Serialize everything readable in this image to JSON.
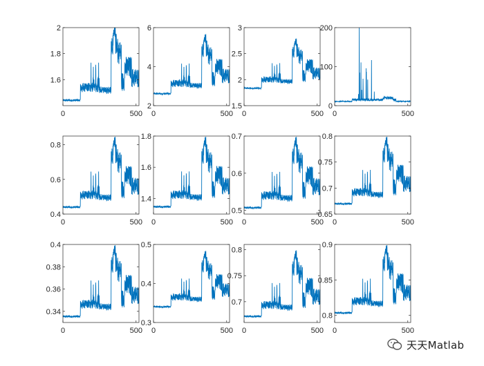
{
  "figure": {
    "line_color": "#0072BD",
    "axis_color": "#262626"
  },
  "watermark": {
    "icon": "wechat-icon",
    "text": "天天Matlab"
  },
  "chart_data": [
    {
      "type": "line",
      "ylim": [
        1.4,
        2
      ],
      "yticks": [
        "1.6",
        "1.8",
        "2"
      ],
      "xlim": [
        0,
        520
      ],
      "xticks": [
        "0",
        "500"
      ],
      "base": 1.42,
      "scale": 0.6
    },
    {
      "type": "line",
      "ylim": [
        2,
        6
      ],
      "yticks": [
        "2",
        "4",
        "6"
      ],
      "xlim": [
        0,
        520
      ],
      "xticks": [
        "0",
        "500"
      ],
      "base": 2.5,
      "scale": 3.2
    },
    {
      "type": "line",
      "ylim": [
        1.5,
        3
      ],
      "yticks": [
        "1.5",
        "2",
        "2.5",
        "3"
      ],
      "xlim": [
        0,
        520
      ],
      "xticks": [
        "0",
        "500"
      ],
      "base": 1.8,
      "scale": 1.0
    },
    {
      "type": "line",
      "ylim": [
        0,
        200
      ],
      "yticks": [
        "0",
        "100",
        "200"
      ],
      "xlim": [
        0,
        520
      ],
      "xticks": [
        "0",
        "500"
      ],
      "base": 8,
      "scale": 200,
      "spiky": true
    },
    {
      "type": "line",
      "ylim": [
        0.4,
        0.85
      ],
      "yticks": [
        "0.4",
        "0.6",
        "0.8"
      ],
      "xlim": [
        0,
        520
      ],
      "xticks": [
        "0",
        "500"
      ],
      "base": 0.425,
      "scale": 0.425
    },
    {
      "type": "line",
      "ylim": [
        1.3,
        1.8
      ],
      "yticks": [
        "1.4",
        "1.6",
        "1.8"
      ],
      "xlim": [
        0,
        520
      ],
      "xticks": [
        "0",
        "500"
      ],
      "base": 1.33,
      "scale": 0.47
    },
    {
      "type": "line",
      "ylim": [
        0.49,
        0.7
      ],
      "yticks": [
        "0.5",
        "0.6",
        "0.7"
      ],
      "xlim": [
        0,
        520
      ],
      "xticks": [
        "0",
        "500"
      ],
      "base": 0.5,
      "scale": 0.2
    },
    {
      "type": "line",
      "ylim": [
        0.65,
        0.8
      ],
      "yticks": [
        "0.65",
        "0.7",
        "0.75",
        "0.8"
      ],
      "xlim": [
        0,
        520
      ],
      "xticks": [
        "0",
        "500"
      ],
      "base": 0.665,
      "scale": 0.135
    },
    {
      "type": "line",
      "ylim": [
        0.33,
        0.4
      ],
      "yticks": [
        "0.34",
        "0.36",
        "0.38",
        "0.4"
      ],
      "xlim": [
        0,
        520
      ],
      "xticks": [
        "0",
        "500"
      ],
      "base": 0.333,
      "scale": 0.067
    },
    {
      "type": "line",
      "ylim": [
        0.3,
        0.5
      ],
      "yticks": [
        "0.3",
        "0.4",
        "0.5"
      ],
      "xlim": [
        0,
        520
      ],
      "xticks": [
        "0",
        "500"
      ],
      "base": 0.335,
      "scale": 0.15
    },
    {
      "type": "line",
      "ylim": [
        0.66,
        0.81
      ],
      "yticks": [
        "0.7",
        "0.75",
        "0.8"
      ],
      "xlim": [
        0,
        520
      ],
      "xticks": [
        "0",
        "500"
      ],
      "base": 0.667,
      "scale": 0.133
    },
    {
      "type": "line",
      "ylim": [
        0.79,
        0.9
      ],
      "yticks": [
        "0.8",
        "0.85",
        "0.9"
      ],
      "xlim": [
        0,
        520
      ],
      "xticks": [
        "0",
        "500"
      ],
      "base": 0.8,
      "scale": 0.1
    }
  ]
}
